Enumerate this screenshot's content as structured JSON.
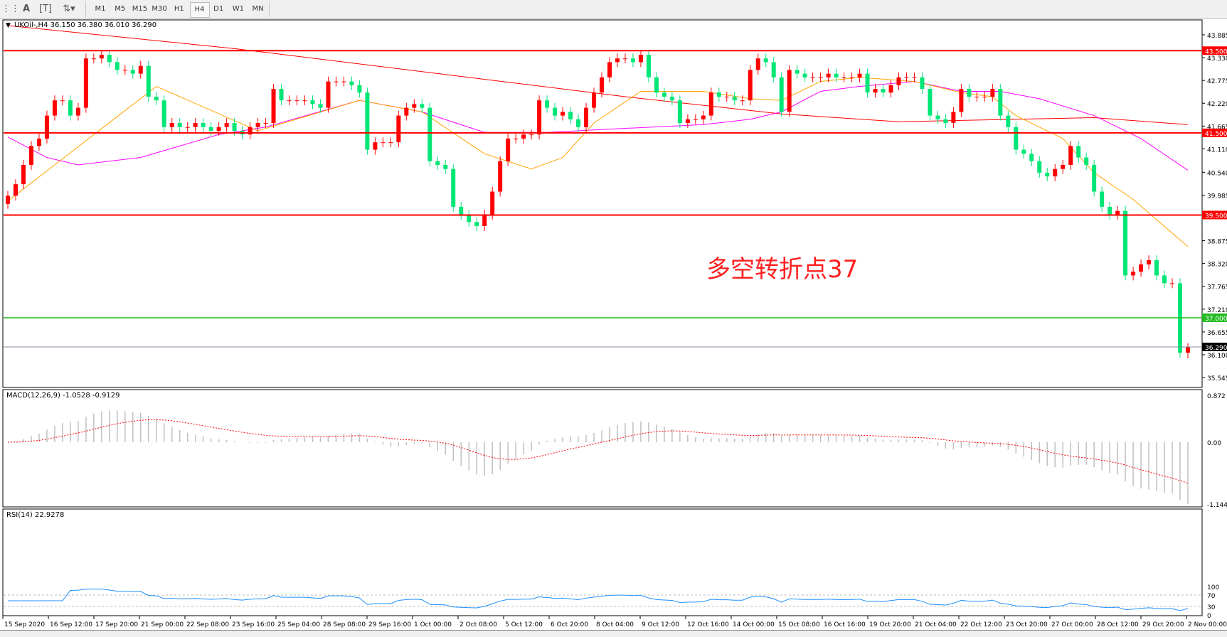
{
  "toolbar": {
    "icons": [
      "grid-icon",
      "text-A-icon",
      "text-label-icon",
      "arrows-icon"
    ],
    "timeframes": [
      "M1",
      "M5",
      "M15",
      "M30",
      "H1",
      "H4",
      "D1",
      "W1",
      "MN"
    ],
    "active_timeframe": "H4"
  },
  "chart_header": "UKOil-,H4  36.150 36.380 36.010 36.290",
  "annotation": {
    "text": "多空转折点37",
    "color": "#ff2020"
  },
  "colors": {
    "up": "#ff0000",
    "down": "#00e676",
    "ma_fast": "#ffa500",
    "ma_mid": "#ff00ff",
    "ma_slow": "#ff0000",
    "level": "#ff0000",
    "level_green": "#22bb22",
    "rsi": "#1e90ff",
    "macd_hist": "#c0c0c0",
    "macd_signal": "#ff0000"
  },
  "chart_data": [
    {
      "type": "candlestick",
      "symbol": "UKOil-",
      "timeframe": "H4",
      "last_bar": {
        "open": 36.15,
        "high": 36.38,
        "low": 36.01,
        "close": 36.29
      },
      "ylim": [
        35.545,
        43.885
      ],
      "price_ticks": [
        "43.885",
        "43.330",
        "42.775",
        "42.220",
        "41.665",
        "41.110",
        "40.540",
        "39.985",
        "38.875",
        "38.320",
        "37.765",
        "37.210",
        "36.655",
        "36.100",
        "35.545"
      ],
      "closes": [
        39.97,
        40.25,
        40.72,
        41.18,
        41.36,
        41.92,
        42.29,
        42.29,
        41.92,
        42.11,
        43.31,
        43.31,
        43.4,
        43.22,
        43.03,
        43.03,
        42.94,
        43.13,
        42.38,
        42.29,
        41.64,
        41.74,
        41.64,
        41.64,
        41.74,
        41.64,
        41.55,
        41.64,
        41.74,
        41.55,
        41.46,
        41.64,
        41.74,
        41.74,
        42.57,
        42.29,
        42.29,
        42.29,
        42.29,
        42.2,
        42.11,
        42.75,
        42.75,
        42.75,
        42.66,
        42.48,
        41.09,
        41.27,
        41.27,
        41.27,
        41.92,
        42.11,
        42.2,
        42.11,
        40.81,
        40.72,
        40.62,
        39.7,
        39.51,
        39.33,
        39.23,
        39.51,
        40.07,
        40.81,
        41.36,
        41.36,
        41.46,
        41.46,
        42.29,
        42.11,
        41.92,
        42.01,
        41.83,
        41.64,
        42.11,
        42.48,
        42.85,
        43.22,
        43.31,
        43.31,
        43.22,
        43.4,
        42.85,
        42.48,
        42.38,
        42.29,
        41.74,
        41.83,
        41.83,
        41.92,
        42.48,
        42.38,
        42.38,
        42.29,
        42.29,
        43.03,
        43.31,
        43.22,
        42.85,
        42.01,
        43.03,
        42.94,
        42.85,
        42.85,
        42.85,
        42.94,
        42.85,
        42.85,
        42.85,
        42.94,
        42.48,
        42.57,
        42.48,
        42.66,
        42.85,
        42.85,
        42.85,
        42.57,
        41.92,
        41.83,
        41.74,
        42.01,
        42.57,
        42.38,
        42.38,
        42.38,
        42.57,
        41.92,
        41.64,
        41.09,
        40.99,
        40.81,
        40.53,
        40.44,
        40.62,
        40.72,
        41.18,
        40.9,
        40.72,
        40.07,
        39.7,
        39.51,
        39.6,
        38.03,
        38.12,
        38.3,
        38.4,
        38.03,
        37.84,
        37.84,
        36.15,
        36.29
      ],
      "moving_averages": [
        {
          "color_key": "ma_slow",
          "points": [
            [
              0,
              44.11
            ],
            [
              29,
              43.55
            ],
            [
              59,
              42.85
            ],
            [
              79,
              42.38
            ],
            [
              99,
              41.96
            ],
            [
              114,
              41.77
            ],
            [
              129,
              41.83
            ],
            [
              139,
              41.87
            ],
            [
              151,
              41.7
            ]
          ]
        },
        {
          "color_key": "ma_mid",
          "points": [
            [
              0,
              41.4
            ],
            [
              5,
              40.9
            ],
            [
              9,
              40.72
            ],
            [
              17,
              40.9
            ],
            [
              27,
              41.46
            ],
            [
              33,
              41.64
            ],
            [
              45,
              42.29
            ],
            [
              53,
              42.01
            ],
            [
              61,
              41.51
            ],
            [
              69,
              41.51
            ],
            [
              77,
              41.59
            ],
            [
              89,
              41.7
            ],
            [
              95,
              41.83
            ],
            [
              99,
              42.01
            ],
            [
              104,
              42.51
            ],
            [
              109,
              42.63
            ],
            [
              116,
              42.75
            ],
            [
              122,
              42.51
            ],
            [
              127,
              42.51
            ],
            [
              132,
              42.33
            ],
            [
              139,
              41.92
            ],
            [
              145,
              41.36
            ],
            [
              151,
              40.59
            ]
          ]
        },
        {
          "color_key": "ma_fast",
          "points": [
            [
              0,
              39.84
            ],
            [
              19,
              42.63
            ],
            [
              32,
              41.55
            ],
            [
              45,
              42.29
            ],
            [
              53,
              42.01
            ],
            [
              61,
              40.99
            ],
            [
              67,
              40.62
            ],
            [
              71,
              40.9
            ],
            [
              75,
              41.74
            ],
            [
              81,
              42.51
            ],
            [
              89,
              42.51
            ],
            [
              95,
              42.33
            ],
            [
              99,
              42.29
            ],
            [
              104,
              42.75
            ],
            [
              109,
              42.85
            ],
            [
              116,
              42.75
            ],
            [
              122,
              42.48
            ],
            [
              126,
              42.38
            ],
            [
              129,
              41.92
            ],
            [
              135,
              41.36
            ],
            [
              139,
              40.53
            ],
            [
              144,
              39.88
            ],
            [
              151,
              38.73
            ]
          ]
        }
      ],
      "levels": [
        {
          "price": 43.5,
          "label": "43.500",
          "color_key": "level"
        },
        {
          "price": 41.5,
          "label": "41.500",
          "color_key": "level"
        },
        {
          "price": 39.5,
          "label": "39.500",
          "color_key": "level"
        },
        {
          "price": 37.0,
          "label": "37.000",
          "color_key": "level_green"
        }
      ],
      "current_price": {
        "price": 36.29,
        "label": "36.290"
      },
      "x_ticks": [
        "15 Sep 2020",
        "16 Sep 12:00",
        "17 Sep 20:00",
        "21 Sep 00:00",
        "22 Sep 08:00",
        "23 Sep 16:00",
        "25 Sep 04:00",
        "28 Sep 08:00",
        "29 Sep 16:00",
        "1 Oct 00:00",
        "2 Oct 08:00",
        "5 Oct 12:00",
        "6 Oct 20:00",
        "8 Oct 04:00",
        "9 Oct 12:00",
        "12 Oct 16:00",
        "14 Oct 00:00",
        "15 Oct 08:00",
        "16 Oct 16:00",
        "19 Oct 20:00",
        "21 Oct 04:00",
        "22 Oct 12:00",
        "23 Oct 20:00",
        "27 Oct 00:00",
        "28 Oct 12:00",
        "29 Oct 20:00",
        "2 Nov 00:00"
      ]
    },
    {
      "type": "bar",
      "title": "MACD(12,26,9) -1.0528 -0.9129",
      "params": [
        12,
        26,
        9
      ],
      "macd": -1.0528,
      "signal": -0.9129,
      "ylim": [
        -1.1444,
        0.872
      ],
      "ticks": [
        "0.872",
        "0.00",
        "-1.1444"
      ]
    },
    {
      "type": "line",
      "title": "RSI(14) 22.9278",
      "period": 14,
      "value": 22.9278,
      "ylim": [
        0,
        100
      ],
      "ticks": [
        "100",
        "70",
        "30",
        "0"
      ],
      "guides": [
        70,
        30
      ]
    }
  ]
}
